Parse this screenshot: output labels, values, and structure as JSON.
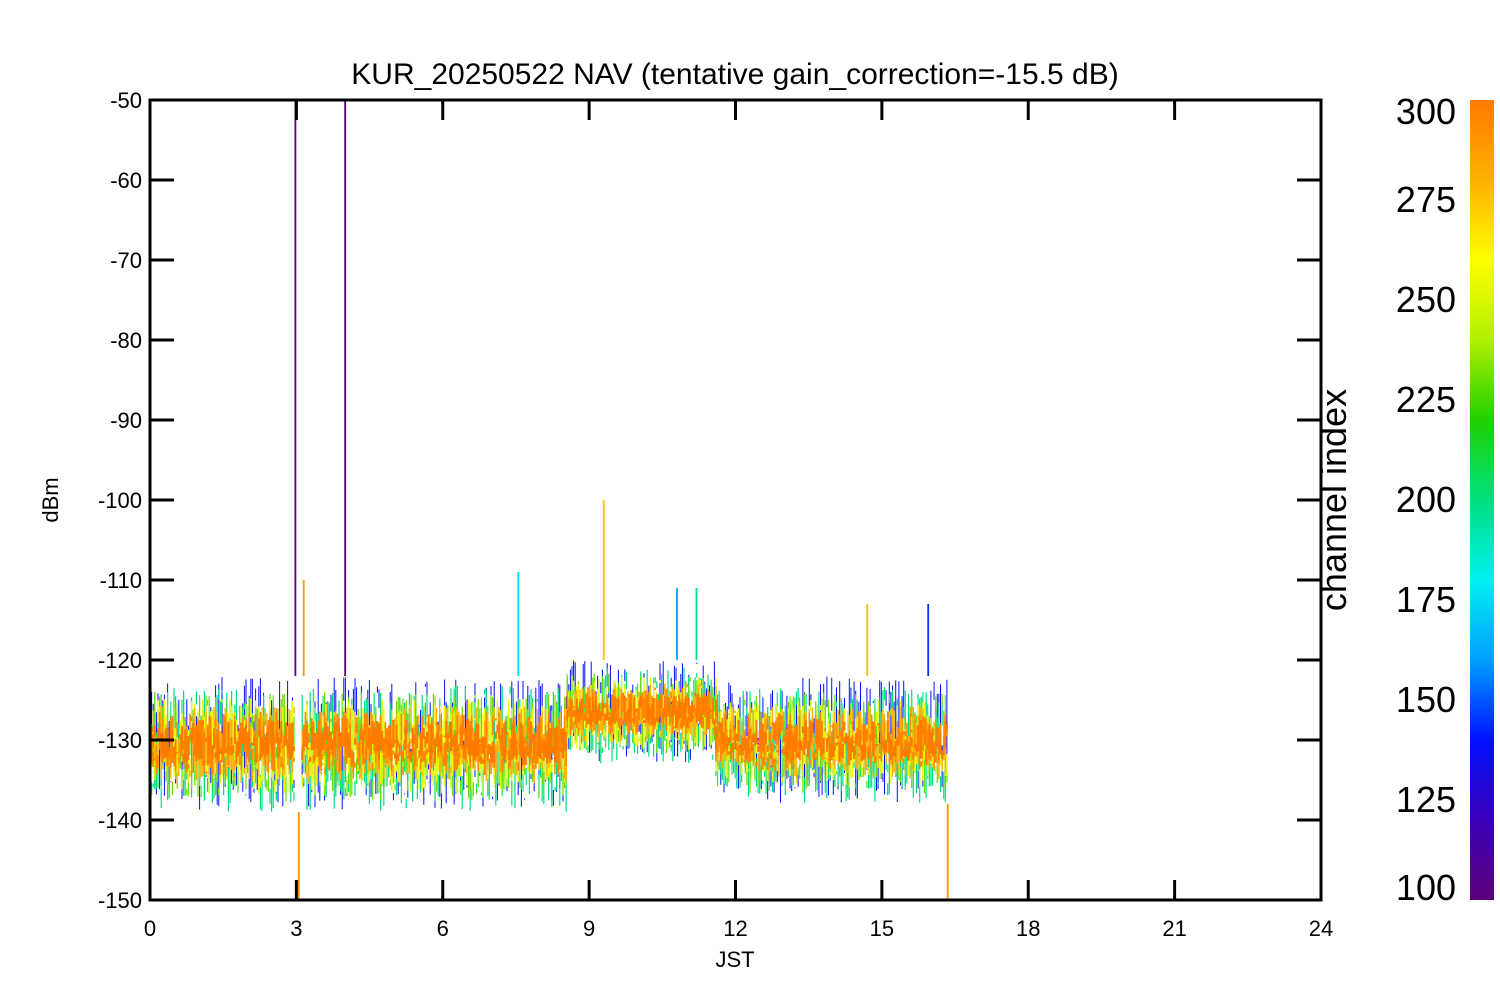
{
  "chart_data": {
    "type": "line",
    "title": "KUR_20250522 NAV (tentative gain_correction=-15.5 dB)",
    "xlabel": "JST",
    "ylabel": "dBm",
    "xlim": [
      0,
      24
    ],
    "ylim": [
      -150,
      -50
    ],
    "x_ticks": [
      "0",
      "3",
      "6",
      "9",
      "12",
      "15",
      "18",
      "21",
      "24"
    ],
    "y_ticks": [
      "-50",
      "-60",
      "-70",
      "-80",
      "-90",
      "-100",
      "-110",
      "-120",
      "-130",
      "-140",
      "-150"
    ],
    "data_extent_x": [
      0,
      16.35
    ],
    "data_gap_x": [
      2.98,
      3.12
    ],
    "segments": [
      {
        "x_start": 0,
        "x_end": 2.98,
        "median": -130,
        "band_upper": -122,
        "band_lower": -139
      },
      {
        "x_start": 3.12,
        "x_end": 8.55,
        "median": -130,
        "band_upper": -122,
        "band_lower": -139
      },
      {
        "x_start": 8.55,
        "x_end": 11.6,
        "median": -126,
        "band_upper": -120,
        "band_lower": -133
      },
      {
        "x_start": 11.6,
        "x_end": 12.2,
        "median": -129,
        "band_upper": -122,
        "band_lower": -137
      },
      {
        "x_start": 12.2,
        "x_end": 16.35,
        "median": -130,
        "band_upper": -122,
        "band_lower": -138
      }
    ],
    "spikes": [
      {
        "x": 2.98,
        "y": -50,
        "channel": 100
      },
      {
        "x": 4.0,
        "y": -50,
        "channel": 100
      },
      {
        "x": 3.15,
        "y": -110,
        "channel": 290
      },
      {
        "x": 9.3,
        "y": -100,
        "channel": 275
      },
      {
        "x": 11.2,
        "y": -111,
        "channel": 200
      },
      {
        "x": 7.55,
        "y": -109,
        "channel": 175
      },
      {
        "x": 14.7,
        "y": -113,
        "channel": 275
      },
      {
        "x": 15.95,
        "y": -113,
        "channel": 145
      },
      {
        "x": 10.8,
        "y": -111,
        "channel": 160
      },
      {
        "x": 3.05,
        "y": -150,
        "channel": 290
      },
      {
        "x": 16.35,
        "y": -150,
        "channel": 290
      }
    ],
    "colorbar": {
      "label": "channel index",
      "range": [
        100,
        300
      ],
      "ticks": [
        "300",
        "275",
        "250",
        "225",
        "200",
        "175",
        "150",
        "125",
        "100"
      ],
      "colors": [
        "#5a0078",
        "#3a00b8",
        "#0010ff",
        "#00a0ff",
        "#00f0f0",
        "#00e080",
        "#20d000",
        "#b0f000",
        "#ffff00",
        "#ffb000",
        "#ff7a00"
      ]
    },
    "grid": false
  }
}
